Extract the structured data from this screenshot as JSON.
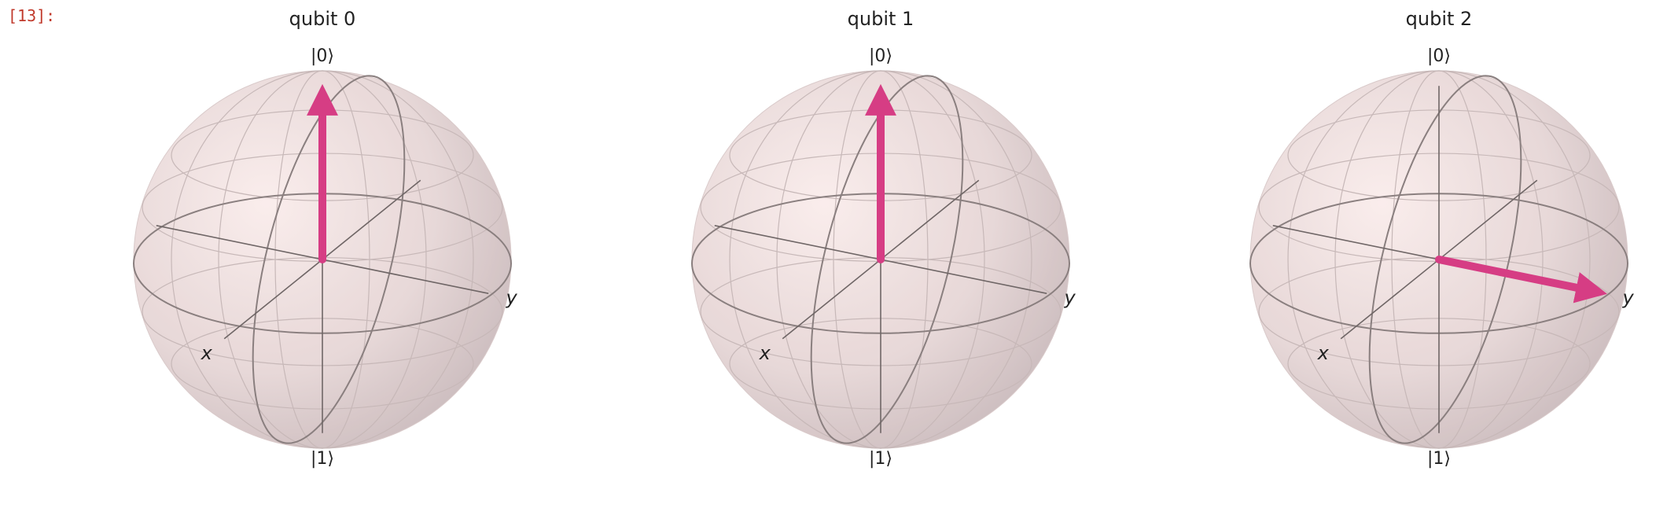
{
  "cell": {
    "prompt": "[13]:"
  },
  "figure": {
    "axis_labels": {
      "x": "x",
      "y": "y",
      "top": "|0⟩",
      "bottom": "|1⟩"
    },
    "vector_color": "#d63d84",
    "spheres": [
      {
        "title": "qubit 0",
        "state": "|0⟩",
        "vector": [
          0,
          0,
          1
        ]
      },
      {
        "title": "qubit 1",
        "state": "|0⟩",
        "vector": [
          0,
          0,
          1
        ]
      },
      {
        "title": "qubit 2",
        "vector": [
          0,
          1,
          0
        ]
      }
    ]
  }
}
